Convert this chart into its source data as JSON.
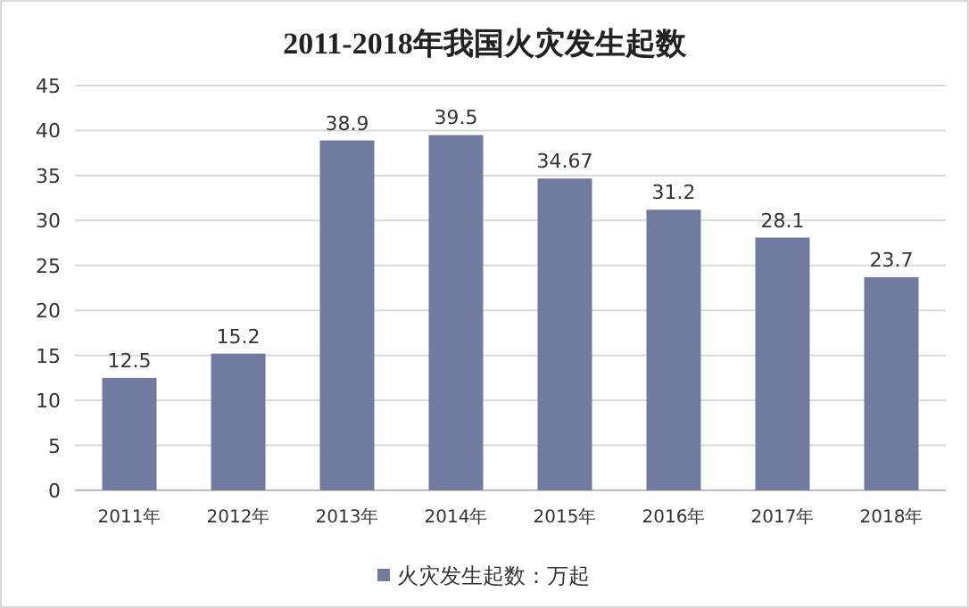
{
  "chart_data": {
    "type": "bar",
    "title": "2011-2018年我国火灾发生起数",
    "categories": [
      "2011年",
      "2012年",
      "2013年",
      "2014年",
      "2015年",
      "2016年",
      "2017年",
      "2018年"
    ],
    "series": [
      {
        "name": "火灾发生起数：万起",
        "color": "#717ba0",
        "values": [
          12.5,
          15.2,
          38.9,
          39.5,
          34.67,
          31.2,
          28.1,
          23.7
        ]
      }
    ],
    "ylim": [
      0,
      45
    ],
    "yticks": [
      0,
      5,
      10,
      15,
      20,
      25,
      30,
      35,
      40,
      45
    ],
    "grid": "y",
    "legend": "bottom",
    "data_labels": true
  }
}
